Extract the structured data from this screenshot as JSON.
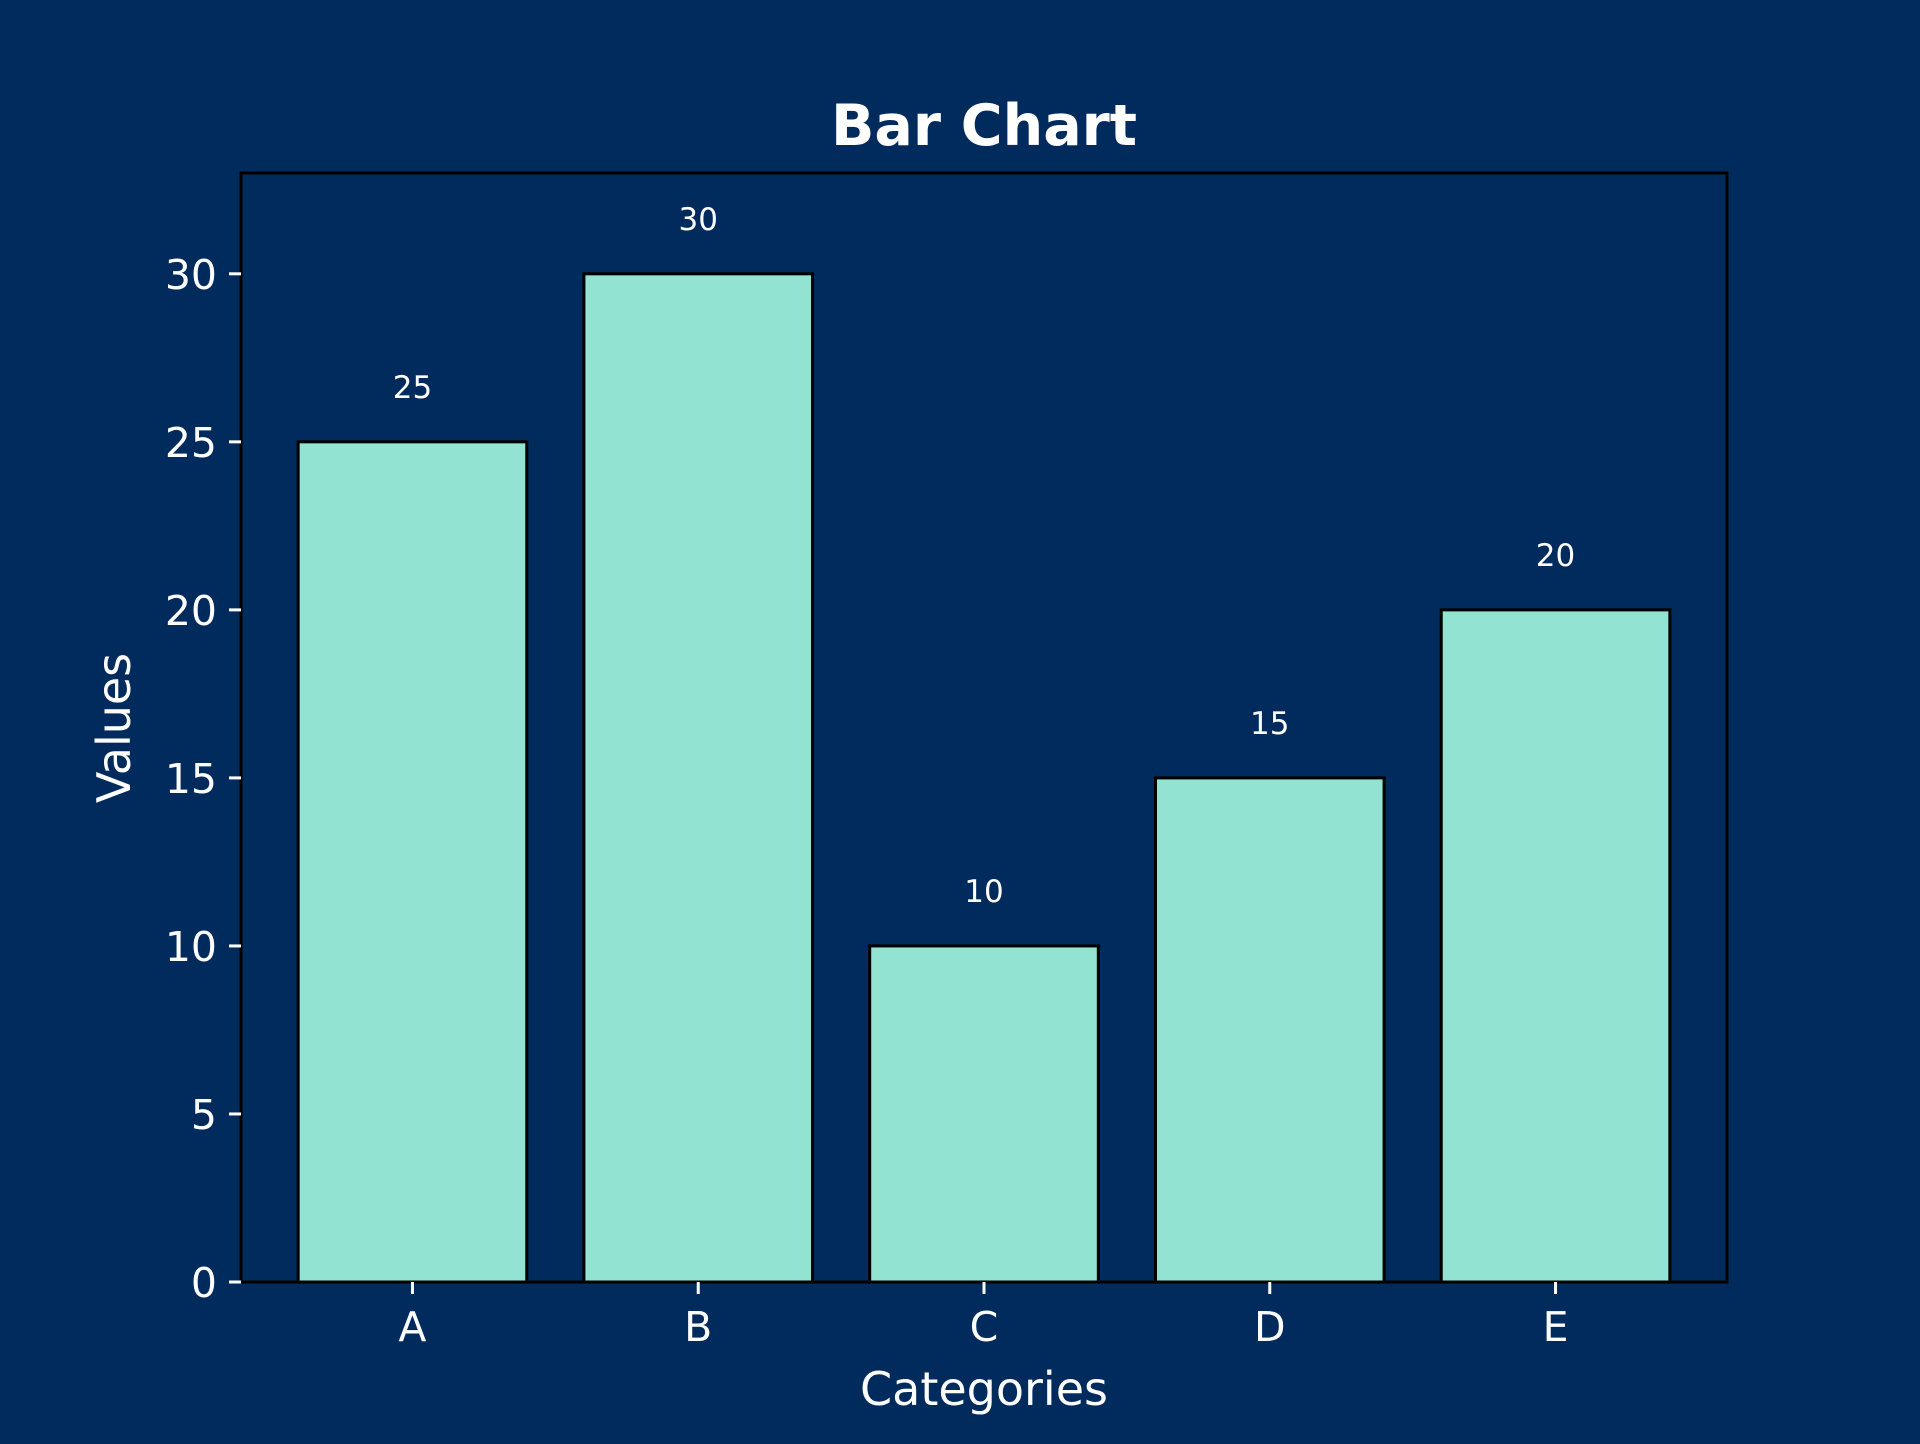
{
  "chart_data": {
    "type": "bar",
    "title": "Bar Chart",
    "xlabel": "Categories",
    "ylabel": "Values",
    "categories": [
      "A",
      "B",
      "C",
      "D",
      "E"
    ],
    "values": [
      25,
      30,
      10,
      15,
      20
    ],
    "data_labels": [
      "25",
      "30",
      "10",
      "15",
      "20"
    ],
    "ylim": [
      0,
      33
    ],
    "yticks": [
      0,
      5,
      10,
      15,
      20,
      25,
      30
    ],
    "grid": false,
    "legend": "none",
    "colors": {
      "background": "#002b5c",
      "plot_background": "#002b5c",
      "bar_fill": "#92e3d2",
      "bar_edge": "#000000",
      "axis": "#000000",
      "text": "#ffffff"
    }
  }
}
